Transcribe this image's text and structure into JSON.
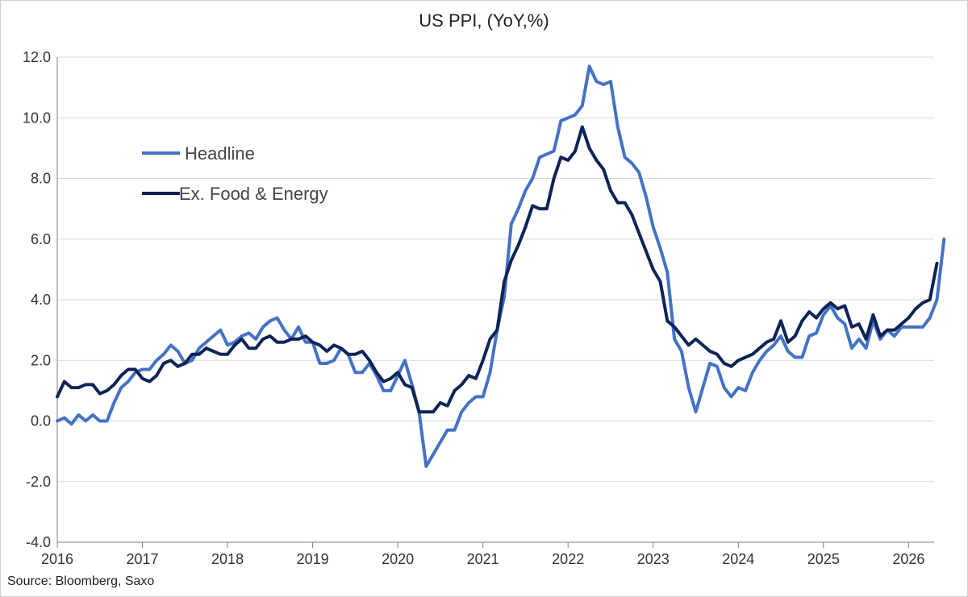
{
  "chart_data": {
    "type": "line",
    "title": "US PPI, (YoY,%)",
    "xlabel": "",
    "ylabel": "",
    "source": "Source: Bloomberg, Saxo",
    "ylim": [
      -4,
      12
    ],
    "yticks": [
      "12.0",
      "10.0",
      "8.0",
      "6.0",
      "4.0",
      "2.0",
      "0.0",
      "-2.0",
      "-4.0"
    ],
    "xticks": [
      "2016",
      "2017",
      "2018",
      "2019",
      "2020",
      "2021",
      "2022",
      "2023",
      "2024",
      "2025",
      "2026"
    ],
    "x_range": [
      "2016-01",
      "2026-04"
    ],
    "grid": "horizontal",
    "legend_position": "top-left",
    "colors": {
      "Headline": "#4472C4",
      "Ex. Food & Energy": "#0E2356",
      "grid": "#d9d9d9",
      "axis": "#7f7f7f"
    },
    "series": [
      {
        "name": "Headline",
        "start": "2016-01",
        "values": [
          0.0,
          0.1,
          -0.1,
          0.2,
          0.0,
          0.2,
          0.0,
          0.0,
          0.6,
          1.1,
          1.3,
          1.6,
          1.7,
          1.7,
          2.0,
          2.2,
          2.5,
          2.3,
          1.9,
          2.0,
          2.4,
          2.6,
          2.8,
          3.0,
          2.5,
          2.6,
          2.8,
          2.9,
          2.7,
          3.1,
          3.3,
          3.4,
          3.0,
          2.7,
          3.1,
          2.6,
          2.6,
          1.9,
          1.9,
          2.0,
          2.4,
          2.2,
          1.6,
          1.6,
          1.9,
          1.5,
          1.0,
          1.0,
          1.5,
          2.0,
          1.2,
          0.3,
          -1.5,
          -1.1,
          -0.7,
          -0.3,
          -0.3,
          0.3,
          0.6,
          0.8,
          0.8,
          1.6,
          3.0,
          4.1,
          6.5,
          7.0,
          7.6,
          8.0,
          8.7,
          8.8,
          8.9,
          9.9,
          10.0,
          10.1,
          10.4,
          11.7,
          11.2,
          11.1,
          11.2,
          9.7,
          8.7,
          8.5,
          8.2,
          7.4,
          6.4,
          5.7,
          4.9,
          2.7,
          2.3,
          1.1,
          0.3,
          1.1,
          1.9,
          1.8,
          1.1,
          0.8,
          1.1,
          1.0,
          1.6,
          2.0,
          2.3,
          2.5,
          2.8,
          2.3,
          2.1,
          2.1,
          2.8,
          2.9,
          3.5,
          3.8,
          3.4,
          3.2,
          2.4,
          2.7,
          2.4,
          3.3,
          2.7,
          3.0,
          2.8,
          3.1,
          3.1,
          3.1,
          3.1,
          3.4,
          4.0,
          6.0
        ]
      },
      {
        "name": "Ex. Food & Energy",
        "start": "2016-01",
        "values": [
          0.8,
          1.3,
          1.1,
          1.1,
          1.2,
          1.2,
          0.9,
          1.0,
          1.2,
          1.5,
          1.7,
          1.7,
          1.4,
          1.3,
          1.5,
          1.9,
          2.0,
          1.8,
          1.9,
          2.2,
          2.2,
          2.4,
          2.3,
          2.2,
          2.2,
          2.5,
          2.7,
          2.4,
          2.4,
          2.7,
          2.8,
          2.6,
          2.6,
          2.7,
          2.7,
          2.8,
          2.6,
          2.5,
          2.3,
          2.5,
          2.4,
          2.2,
          2.2,
          2.3,
          2.0,
          1.6,
          1.3,
          1.4,
          1.6,
          1.2,
          1.1,
          0.3,
          0.3,
          0.3,
          0.6,
          0.5,
          1.0,
          1.2,
          1.5,
          1.4,
          2.0,
          2.7,
          3.0,
          4.6,
          5.3,
          5.8,
          6.4,
          7.1,
          7.0,
          7.0,
          8.0,
          8.7,
          8.6,
          8.9,
          9.7,
          9.0,
          8.6,
          8.3,
          7.6,
          7.2,
          7.2,
          6.8,
          6.2,
          5.6,
          5.0,
          4.6,
          3.3,
          3.1,
          2.8,
          2.5,
          2.7,
          2.5,
          2.3,
          2.2,
          1.9,
          1.8,
          2.0,
          2.1,
          2.2,
          2.4,
          2.6,
          2.7,
          3.3,
          2.6,
          2.8,
          3.3,
          3.6,
          3.4,
          3.7,
          3.9,
          3.7,
          3.8,
          3.1,
          3.2,
          2.7,
          3.5,
          2.8,
          3.0,
          3.0,
          3.2,
          3.4,
          3.7,
          3.9,
          4.0,
          5.2
        ]
      }
    ]
  }
}
